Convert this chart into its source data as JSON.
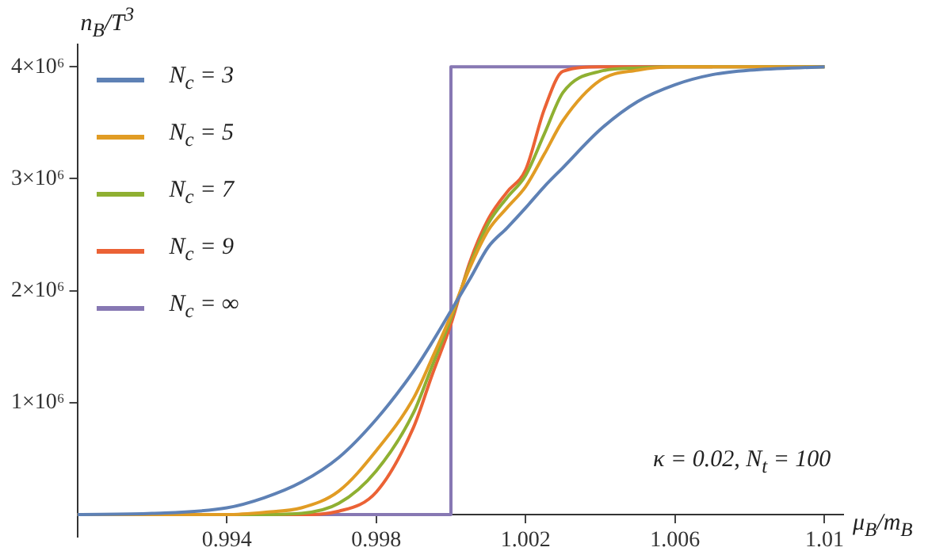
{
  "chart_data": {
    "type": "line",
    "xlabel": "μ$_{B}$/m$_{B}$",
    "ylabel": "n$_{B}$/T$^{3}$",
    "annotations": [
      "κ = 0.02, N$_{t}$ = 100"
    ],
    "x": [
      0.99,
      0.992,
      0.994,
      0.995,
      0.996,
      0.997,
      0.998,
      0.999,
      0.9995,
      1.0,
      1.0005,
      1.001,
      1.0015,
      1.002,
      1.0025,
      1.003,
      1.004,
      1.005,
      1.006,
      1.007,
      1.008,
      1.01
    ],
    "series": [
      {
        "name": "N$_{c}$ = 3",
        "color": "#5e81b5",
        "values": [
          0,
          10000,
          60000,
          150000,
          290000,
          510000,
          850000,
          1280000,
          1540000,
          1820000,
          2100000,
          2390000,
          2560000,
          2740000,
          2930000,
          3100000,
          3440000,
          3690000,
          3840000,
          3930000,
          3970000,
          4000000
        ]
      },
      {
        "name": "N$_{c}$ = 5",
        "color": "#e19c24",
        "values": [
          0,
          0,
          0,
          20000,
          60000,
          210000,
          570000,
          1040000,
          1400000,
          1780000,
          2200000,
          2540000,
          2740000,
          2930000,
          3220000,
          3520000,
          3880000,
          3970000,
          4000000,
          4000000,
          4000000,
          4000000
        ]
      },
      {
        "name": "N$_{c}$ = 7",
        "color": "#8fb032",
        "values": [
          0,
          0,
          0,
          0,
          10000,
          100000,
          390000,
          910000,
          1330000,
          1750000,
          2220000,
          2600000,
          2830000,
          3030000,
          3400000,
          3770000,
          3960000,
          3990000,
          4000000,
          4000000,
          4000000,
          4000000
        ]
      },
      {
        "name": "N$_{c}$ = 9",
        "color": "#eb6235",
        "values": [
          0,
          0,
          0,
          0,
          0,
          30000,
          200000,
          780000,
          1250000,
          1700000,
          2250000,
          2640000,
          2880000,
          3080000,
          3620000,
          3960000,
          4000000,
          4000000,
          4000000,
          4000000,
          null,
          null
        ]
      },
      {
        "name": "N$_{c}$ = ∞",
        "color": "#8778b3",
        "x": [
          0.99,
          1.0,
          1.0,
          1.01
        ],
        "values": [
          0,
          0,
          4000000,
          4000000
        ]
      }
    ],
    "xlim": [
      0.99,
      1.0105
    ],
    "ylim": [
      -200000,
      4200000
    ],
    "xticks": [
      0.994,
      0.998,
      1.002,
      1.006,
      1.01
    ],
    "yticks": [
      {
        "value": 1000000,
        "label": "1×10⁶"
      },
      {
        "value": 2000000,
        "label": "2×10⁶"
      },
      {
        "value": 3000000,
        "label": "3×10⁶"
      },
      {
        "value": 4000000,
        "label": "4×10⁶"
      }
    ],
    "grid": false,
    "legend": "top left",
    "marker": "none",
    "line_style": "solid"
  }
}
